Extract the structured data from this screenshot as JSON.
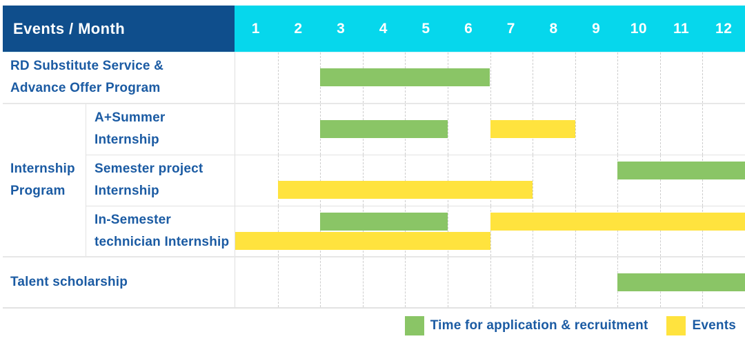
{
  "header": {
    "title": "Events / Month"
  },
  "legend": {
    "application": "Time for application & recruitment",
    "events": "Events"
  },
  "colors": {
    "header_bg": "#0f4e8c",
    "months_bg": "#06d7ec",
    "label_text": "#1b5ba3",
    "application": "#8ac566",
    "event": "#ffe33e"
  },
  "chart_data": {
    "type": "gantt",
    "title": "Events / Month",
    "months": [
      "1",
      "2",
      "3",
      "4",
      "5",
      "6",
      "7",
      "8",
      "9",
      "10",
      "11",
      "12"
    ],
    "month_range": [
      1,
      12
    ],
    "legend_entries": [
      {
        "type": "application",
        "label": "Time for application & recruitment",
        "color": "#8ac566"
      },
      {
        "type": "event",
        "label": "Events",
        "color": "#ffe33e"
      }
    ],
    "sections": [
      {
        "label_lines": [
          "RD Substitute Service &",
          "Advance Offer Program"
        ],
        "lanes": [
          [
            {
              "type": "application",
              "start": 3,
              "end": 7
            }
          ]
        ]
      },
      {
        "group_label_lines": [
          "Internship",
          "Program"
        ],
        "rows": [
          {
            "label_lines": [
              "A+Summer",
              "Internship"
            ],
            "lanes": [
              [
                {
                  "type": "application",
                  "start": 3,
                  "end": 6
                },
                {
                  "type": "event",
                  "start": 7,
                  "end": 9
                }
              ]
            ]
          },
          {
            "label_lines": [
              "Semester project",
              "Internship"
            ],
            "lanes": [
              [
                {
                  "type": "application",
                  "start": 10,
                  "end": 13
                }
              ],
              [
                {
                  "type": "event",
                  "start": 2,
                  "end": 8
                }
              ]
            ]
          },
          {
            "label_lines": [
              "In-Semester",
              "technician Internship"
            ],
            "lanes": [
              [
                {
                  "type": "application",
                  "start": 3,
                  "end": 6
                },
                {
                  "type": "event",
                  "start": 7,
                  "end": 13
                }
              ],
              [
                {
                  "type": "event",
                  "start": 1,
                  "end": 7
                }
              ]
            ]
          }
        ]
      },
      {
        "label_lines": [
          "Talent scholarship"
        ],
        "lanes": [
          [
            {
              "type": "application",
              "start": 10,
              "end": 13
            }
          ]
        ]
      }
    ]
  }
}
